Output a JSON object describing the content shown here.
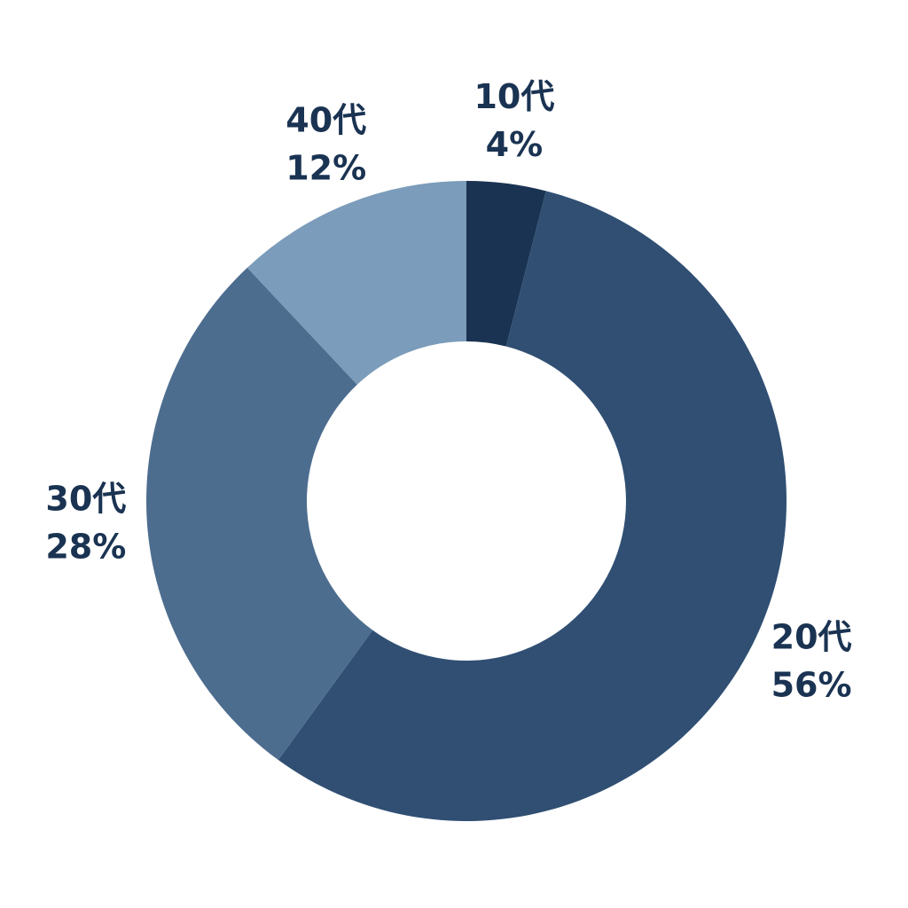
{
  "chart_data": {
    "type": "donut",
    "categories": [
      "10代",
      "20代",
      "30代",
      "40代"
    ],
    "values": [
      4,
      56,
      28,
      12
    ],
    "value_labels": [
      "4%",
      "56%",
      "28%",
      "12%"
    ],
    "colors": [
      "#1a3352",
      "#304f73",
      "#4d6d8f",
      "#7b9cba"
    ]
  }
}
